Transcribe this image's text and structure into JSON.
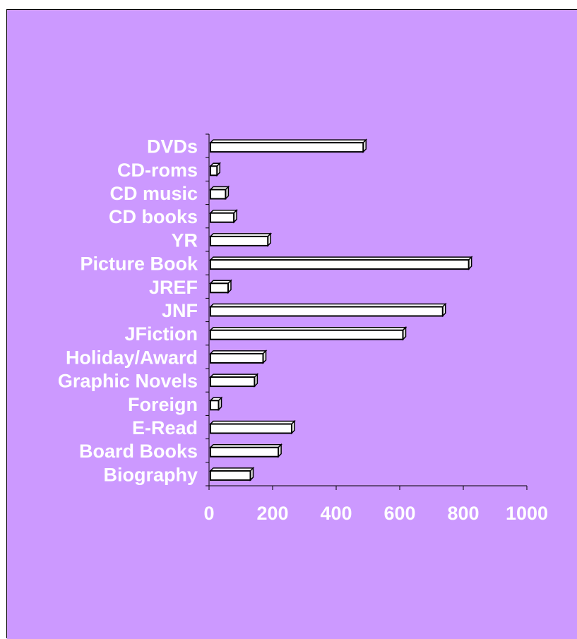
{
  "chart_data": {
    "type": "bar",
    "orientation": "horizontal",
    "categories": [
      "DVDs",
      "CD-roms",
      "CD music",
      "CD books",
      "YR",
      "Picture Book",
      "JREF",
      "JNF",
      "JFiction",
      "Holiday/Award",
      "Graphic Novels",
      "Foreign",
      "E-Read",
      "Board Books",
      "Biography"
    ],
    "values": [
      485,
      25,
      52,
      78,
      185,
      817,
      60,
      735,
      610,
      170,
      143,
      30,
      260,
      218,
      130
    ],
    "xlim": [
      0,
      1000
    ],
    "xticks": [
      0,
      200,
      400,
      600,
      800,
      1000
    ],
    "xtick_labels": [
      "0",
      "200",
      "400",
      "600",
      "800",
      "1000"
    ],
    "title": "",
    "xlabel": "",
    "ylabel": "",
    "grid": false,
    "legend": "none"
  },
  "colors": {
    "background": "#cc99ff",
    "bar_face": "#ffffff",
    "bar_side": "#e6e6e6",
    "bar_stroke": "#000000",
    "text": "#ffffff",
    "axis": "#000000"
  }
}
